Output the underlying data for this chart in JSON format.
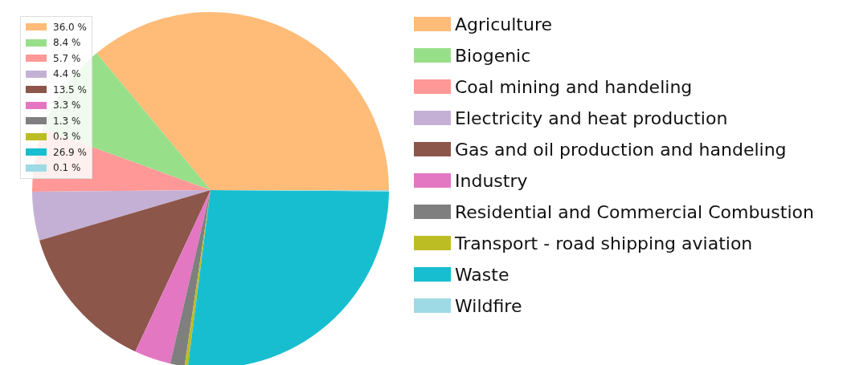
{
  "chart_data": {
    "type": "pie",
    "categories": [
      "Agriculture",
      "Biogenic",
      "Coal mining and handeling",
      "Electricity and heat production",
      "Gas and oil production and handeling",
      "Industry",
      "Residential and Commercial Combustion",
      "Transport - road shipping aviation",
      "Waste",
      "Wildfire"
    ],
    "values": [
      36.0,
      8.4,
      5.7,
      4.4,
      13.5,
      3.3,
      1.3,
      0.3,
      26.9,
      0.1
    ],
    "annotations": [
      "36.0 %",
      "8.4 %",
      "5.7 %",
      "4.4 %",
      "13.5 %",
      "3.3 %",
      "1.3 %",
      "0.3 %",
      "26.9 %",
      "0.1 %"
    ],
    "colors": [
      "#ffbb78",
      "#98df8a",
      "#ff9896",
      "#c5b0d5",
      "#8c564b",
      "#e377c2",
      "#7f7f7f",
      "#bcbd22",
      "#17becf",
      "#9edae5"
    ],
    "legend": "right"
  }
}
